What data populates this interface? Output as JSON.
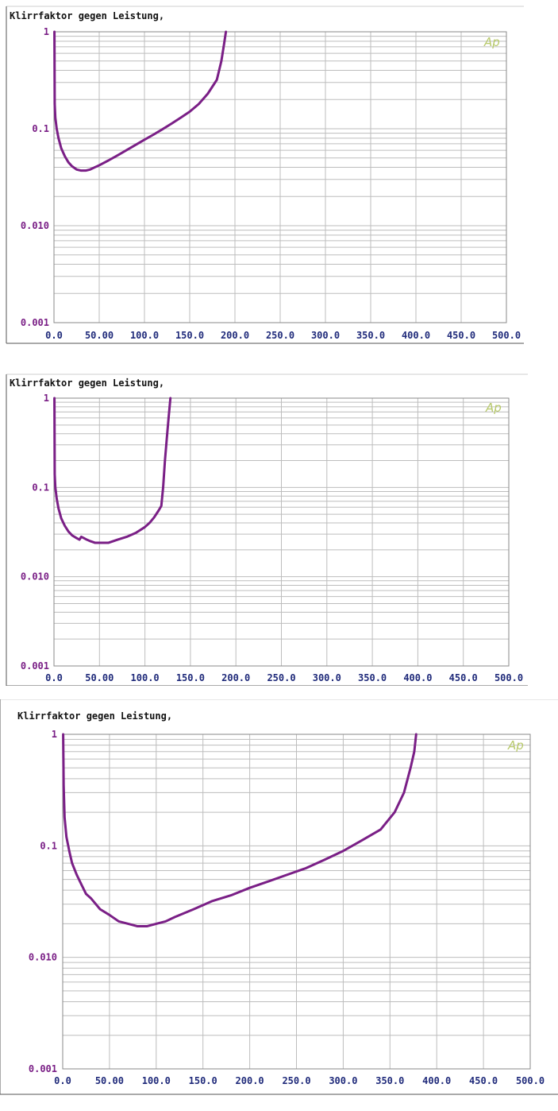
{
  "colors": {
    "curve": "#7a1f86",
    "ytick": "#7a1f86",
    "xtick": "#1f2a7a",
    "grid": "#bdbdbd",
    "frame": "#8a8a8a",
    "logo": "#b7c96a"
  },
  "chart_data": [
    {
      "type": "line",
      "title": "Klirrfaktor gegen Leistung,",
      "logo_text": "Ap",
      "y_scale": "log",
      "ylim": [
        0.001,
        1
      ],
      "xlim": [
        0,
        500
      ],
      "y_ticks": [
        "1",
        "0.1",
        "0.010",
        "0.001"
      ],
      "x_ticks": [
        "0.0",
        "50.00",
        "100.0",
        "150.0",
        "200.0",
        "250.0",
        "300.0",
        "350.0",
        "400.0",
        "450.0",
        "500.0"
      ],
      "series": [
        {
          "x": [
            0.5,
            0.8,
            1.5,
            3,
            5,
            8,
            12,
            16,
            20,
            25,
            30,
            35,
            40,
            45,
            50,
            60,
            70,
            80,
            90,
            100,
            110,
            120,
            130,
            140,
            150,
            160,
            170,
            180,
            185,
            188,
            190
          ],
          "y": [
            1.0,
            0.18,
            0.13,
            0.1,
            0.08,
            0.063,
            0.052,
            0.045,
            0.041,
            0.038,
            0.037,
            0.037,
            0.038,
            0.04,
            0.042,
            0.047,
            0.053,
            0.06,
            0.068,
            0.077,
            0.087,
            0.099,
            0.113,
            0.13,
            0.15,
            0.18,
            0.23,
            0.32,
            0.5,
            0.75,
            1.0
          ]
        }
      ]
    },
    {
      "type": "line",
      "title": "Klirrfaktor gegen Leistung,",
      "logo_text": "Ap",
      "y_scale": "log",
      "ylim": [
        0.001,
        1
      ],
      "xlim": [
        0,
        500
      ],
      "y_ticks": [
        "1",
        "0.1",
        "0.010",
        "0.001"
      ],
      "x_ticks": [
        "0.0",
        "50.00",
        "100.0",
        "150.0",
        "200.0",
        "250.0",
        "300.0",
        "350.0",
        "400.0",
        "450.0",
        "500.0"
      ],
      "series": [
        {
          "x": [
            0.5,
            0.8,
            1.5,
            3,
            5,
            8,
            12,
            16,
            20,
            25,
            28,
            30,
            33,
            36,
            40,
            45,
            50,
            55,
            60,
            70,
            80,
            90,
            100,
            105,
            110,
            115,
            118,
            120,
            122,
            124,
            126,
            128
          ],
          "y": [
            1.0,
            0.14,
            0.1,
            0.075,
            0.058,
            0.045,
            0.037,
            0.032,
            0.029,
            0.027,
            0.026,
            0.028,
            0.027,
            0.026,
            0.025,
            0.024,
            0.024,
            0.024,
            0.024,
            0.026,
            0.028,
            0.031,
            0.036,
            0.04,
            0.046,
            0.055,
            0.062,
            0.1,
            0.2,
            0.35,
            0.6,
            1.0
          ]
        }
      ]
    },
    {
      "type": "line",
      "title": "Klirrfaktor gegen Leistung,",
      "logo_text": "Ap",
      "y_scale": "log",
      "ylim": [
        0.001,
        1
      ],
      "xlim": [
        0,
        500
      ],
      "y_ticks": [
        "1",
        "0.1",
        "0.010",
        "0.001"
      ],
      "x_ticks": [
        "0.0",
        "50.00",
        "100.0",
        "150.0",
        "200.0",
        "250.0",
        "300.0",
        "350.0",
        "400.0",
        "450.0",
        "500.0"
      ],
      "series": [
        {
          "x": [
            0.5,
            1,
            2,
            4,
            7,
            10,
            15,
            20,
            25,
            30,
            40,
            50,
            60,
            70,
            80,
            90,
            100,
            110,
            120,
            140,
            160,
            180,
            200,
            220,
            240,
            260,
            280,
            300,
            320,
            340,
            355,
            365,
            372,
            376,
            378
          ],
          "y": [
            1.0,
            0.35,
            0.18,
            0.12,
            0.09,
            0.07,
            0.055,
            0.045,
            0.037,
            0.034,
            0.027,
            0.024,
            0.021,
            0.02,
            0.019,
            0.019,
            0.02,
            0.021,
            0.023,
            0.027,
            0.032,
            0.036,
            0.042,
            0.048,
            0.055,
            0.063,
            0.075,
            0.09,
            0.112,
            0.14,
            0.2,
            0.3,
            0.5,
            0.7,
            1.0
          ]
        }
      ]
    }
  ]
}
